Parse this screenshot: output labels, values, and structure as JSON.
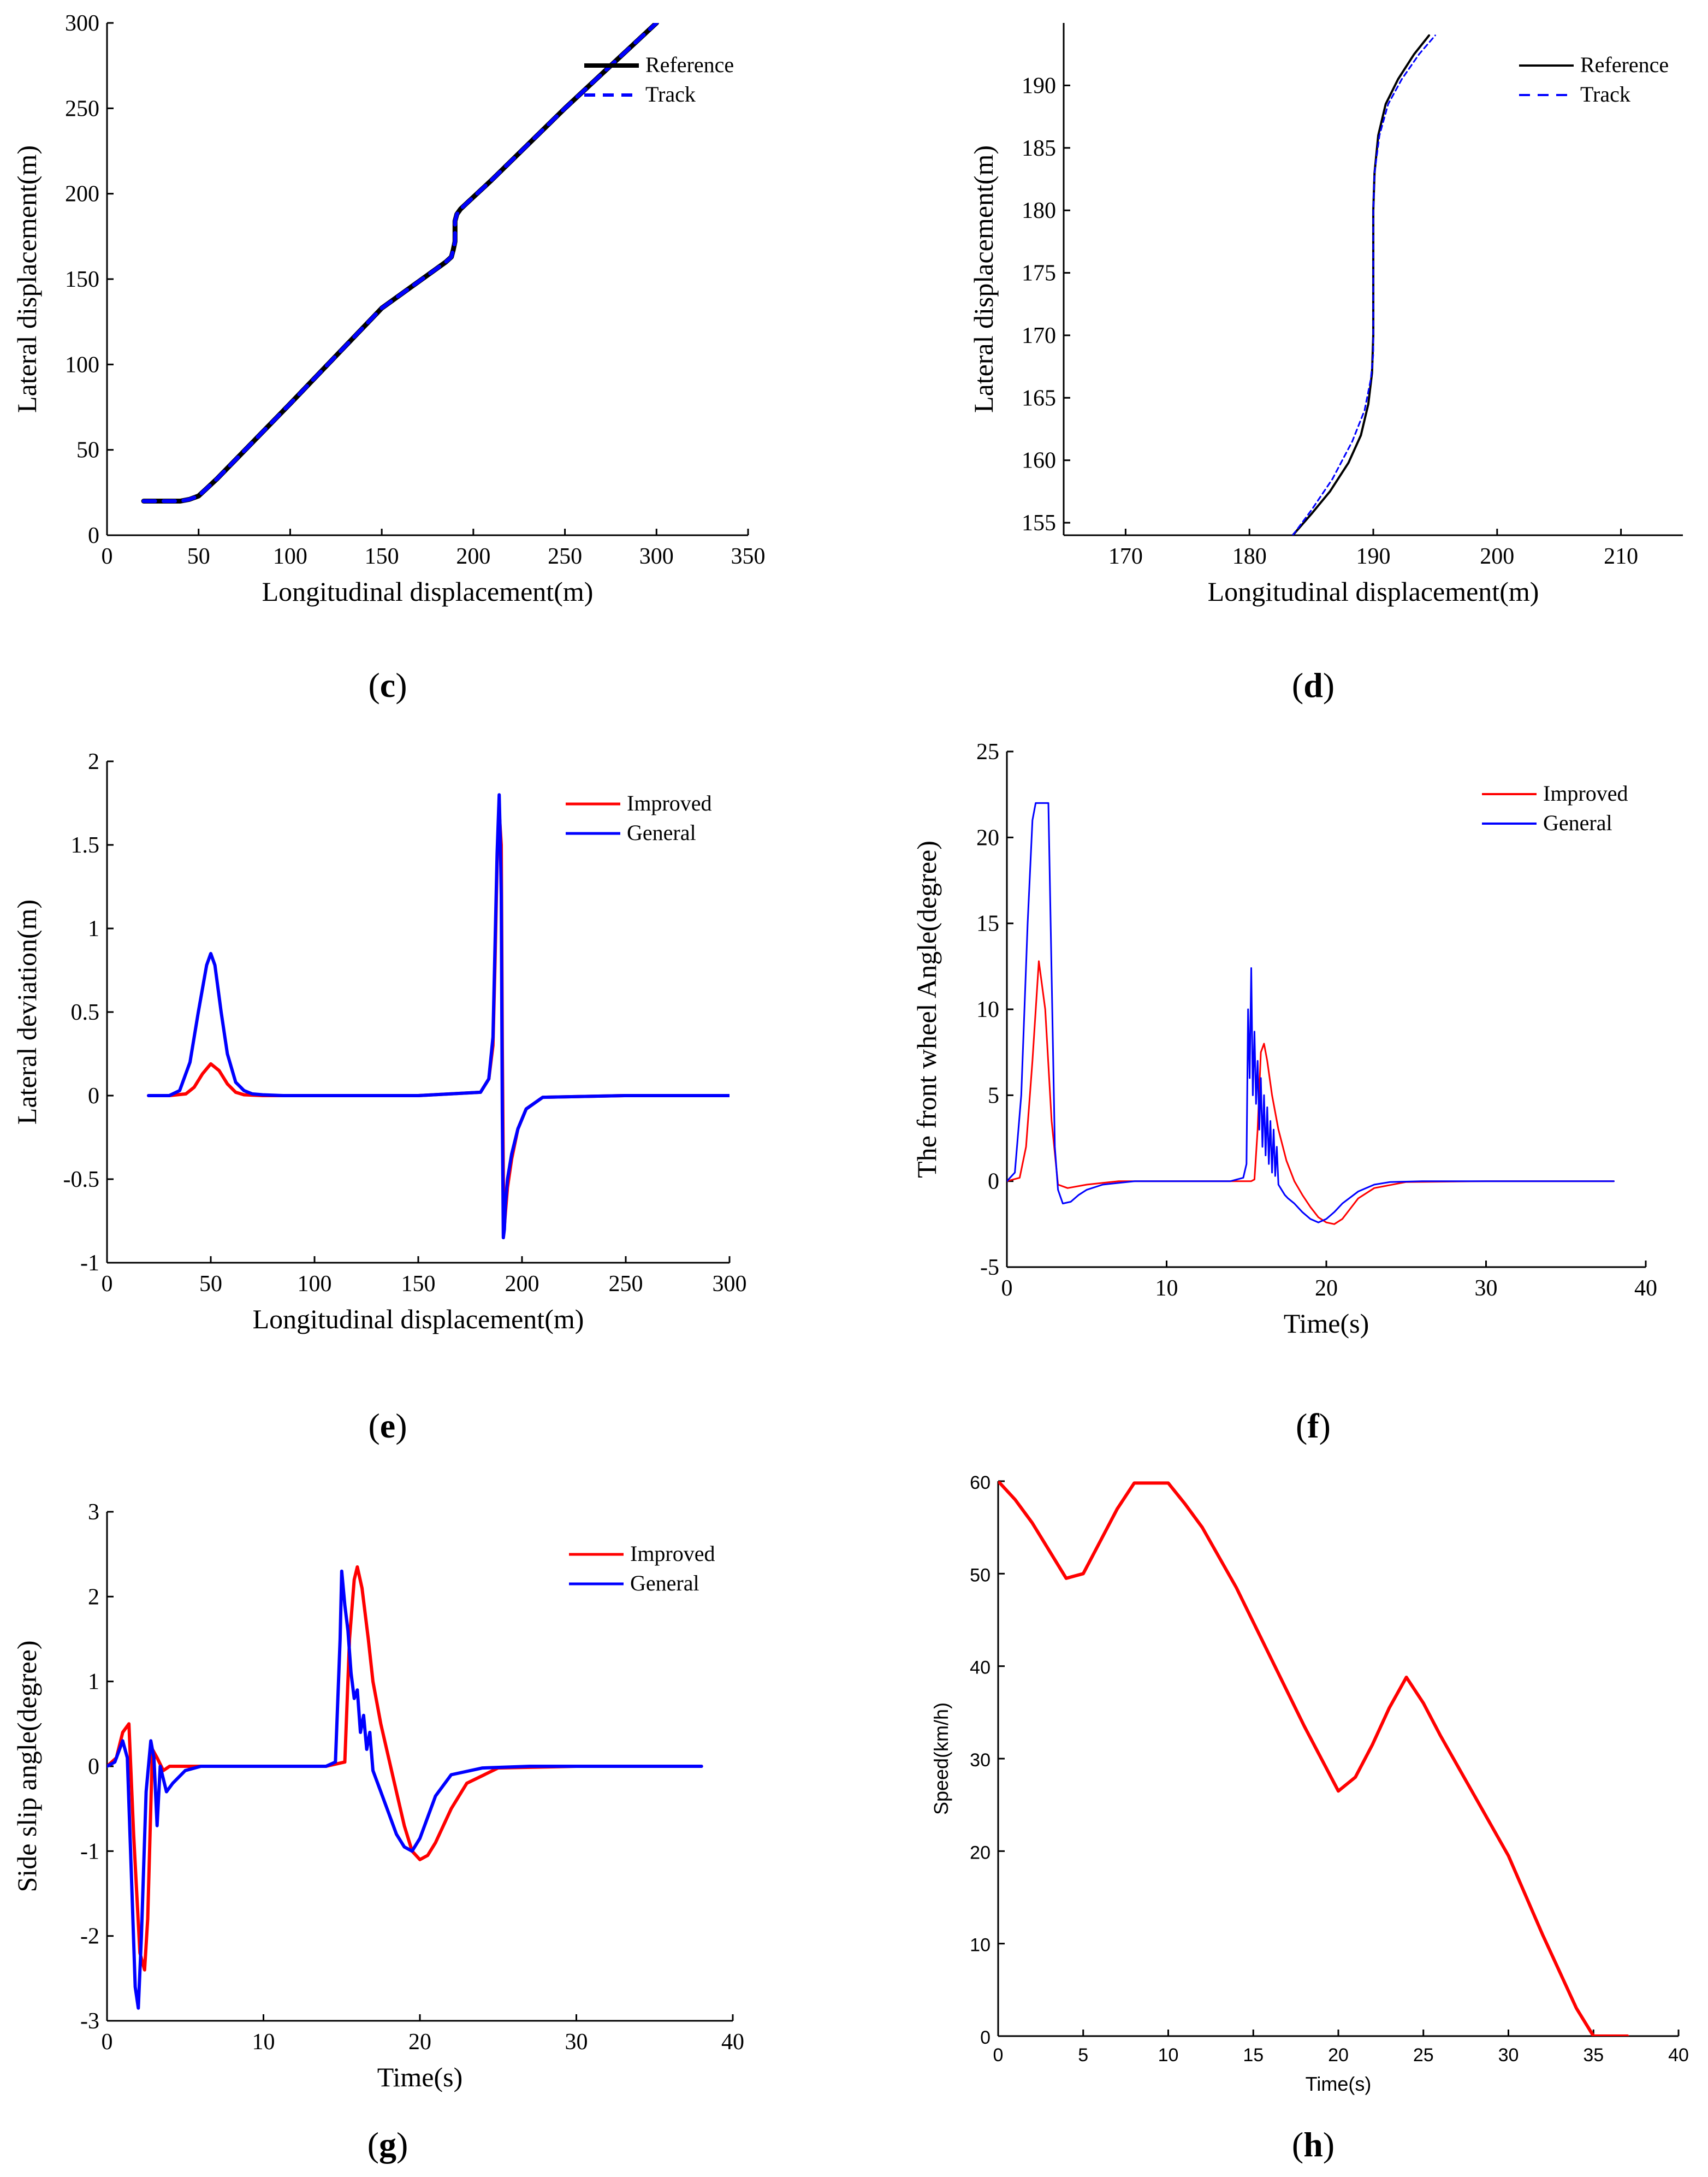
{
  "colors": {
    "black": "#000000",
    "blue": "#0000ff",
    "red": "#ff0000"
  },
  "captions": {
    "c": {
      "open": "(",
      "letter": "c",
      "close": ")"
    },
    "d": {
      "open": "(",
      "letter": "d",
      "close": ")"
    },
    "e": {
      "open": "(",
      "letter": "e",
      "close": ")"
    },
    "f": {
      "open": "(",
      "letter": "f",
      "close": ")"
    },
    "g": {
      "open": "(",
      "letter": "g",
      "close": ")"
    },
    "h": {
      "open": "(",
      "letter": "h",
      "close": ")"
    }
  },
  "chart_data": [
    {
      "id": "c",
      "type": "line",
      "title": "",
      "xlabel": "Longitudinal displacement(m)",
      "ylabel": "Lateral displacement(m)",
      "xlim": [
        0,
        350
      ],
      "ylim": [
        0,
        300
      ],
      "xticks": [
        0,
        50,
        100,
        150,
        200,
        250,
        300,
        350
      ],
      "yticks": [
        0,
        50,
        100,
        150,
        200,
        250,
        300
      ],
      "legend": {
        "position": "top-right"
      },
      "series": [
        {
          "name": "Reference",
          "color": "#000000",
          "dash": "solid",
          "width": 9,
          "x": [
            20,
            30,
            40,
            45,
            50,
            55,
            60,
            100,
            150,
            185,
            188,
            189,
            190,
            190,
            190,
            191,
            193,
            196,
            210,
            250,
            300
          ],
          "y": [
            20,
            20,
            20,
            21,
            23,
            28,
            33,
            77,
            133,
            160,
            163,
            167,
            172,
            178,
            184,
            188,
            191,
            194,
            208,
            250,
            300
          ]
        },
        {
          "name": "Track",
          "color": "#0000ff",
          "dash": "dash",
          "width": 7,
          "x": [
            20,
            30,
            40,
            45,
            50,
            55,
            60,
            100,
            150,
            185,
            188,
            189,
            190,
            190,
            190,
            191,
            193,
            196,
            210,
            250,
            300
          ],
          "y": [
            20,
            20,
            20,
            21,
            23,
            28,
            33,
            77,
            133,
            160,
            163,
            167,
            172,
            178,
            184,
            188,
            191,
            194,
            208,
            250,
            300
          ]
        }
      ]
    },
    {
      "id": "d",
      "type": "line",
      "title": "",
      "xlabel": "Longitudinal displacement(m)",
      "ylabel": "Lateral displacement(m)",
      "xlim": [
        165,
        215
      ],
      "ylim": [
        154,
        195
      ],
      "xticks": [
        170,
        180,
        190,
        200,
        210
      ],
      "yticks": [
        155,
        160,
        165,
        170,
        175,
        180,
        185,
        190
      ],
      "legend": {
        "position": "top-right"
      },
      "series": [
        {
          "name": "Reference",
          "color": "#000000",
          "dash": "solid",
          "width": 4,
          "x": [
            183.5,
            185,
            186.5,
            188,
            189,
            189.6,
            189.9,
            190,
            190,
            190,
            190.1,
            190.4,
            191,
            192,
            193.3,
            194.5
          ],
          "y": [
            154,
            155.7,
            157.5,
            159.8,
            162,
            164.5,
            167,
            170,
            175,
            180,
            183,
            186,
            188.5,
            190.5,
            192.5,
            194
          ]
        },
        {
          "name": "Track",
          "color": "#0000ff",
          "dash": "dash",
          "width": 3,
          "x": [
            183.5,
            185,
            186.7,
            188.3,
            189.3,
            189.8,
            190,
            190,
            190,
            190,
            190.1,
            190.5,
            191.2,
            192.3,
            193.7,
            195
          ],
          "y": [
            154,
            156,
            158.5,
            161.5,
            164,
            166.5,
            168.5,
            171,
            175,
            180,
            183,
            186,
            188.5,
            190.5,
            192.5,
            194
          ]
        }
      ]
    },
    {
      "id": "e",
      "type": "line",
      "title": "",
      "xlabel": "Longitudinal displacement(m)",
      "ylabel": "Lateral deviation(m)",
      "xlim": [
        0,
        300
      ],
      "ylim": [
        -1,
        2
      ],
      "xticks": [
        0,
        50,
        100,
        150,
        200,
        250,
        300
      ],
      "yticks": [
        -1,
        -0.5,
        0,
        0.5,
        1,
        1.5,
        2
      ],
      "legend": {
        "position": "top-right"
      },
      "series": [
        {
          "name": "Improved",
          "color": "#ff0000",
          "dash": "solid",
          "width": 6,
          "x": [
            20,
            30,
            38,
            42,
            46,
            50,
            54,
            58,
            62,
            66,
            75,
            100,
            150,
            180,
            184,
            186,
            187,
            188,
            189,
            190,
            190.5,
            191,
            191.5,
            192,
            193,
            195,
            198,
            202,
            210,
            250,
            300
          ],
          "y": [
            0,
            0,
            0.01,
            0.05,
            0.13,
            0.19,
            0.15,
            0.07,
            0.02,
            0.005,
            0,
            0,
            0,
            0.02,
            0.1,
            0.3,
            0.8,
            1.4,
            1.7,
            1.5,
            0.3,
            -0.5,
            -0.78,
            -0.7,
            -0.55,
            -0.38,
            -0.2,
            -0.08,
            -0.01,
            0,
            0
          ]
        },
        {
          "name": "General",
          "color": "#0000ff",
          "dash": "solid",
          "width": 6,
          "x": [
            20,
            30,
            35,
            40,
            44,
            48,
            50,
            52,
            55,
            58,
            62,
            66,
            70,
            75,
            85,
            100,
            150,
            180,
            184,
            186,
            187,
            188,
            189,
            189.5,
            190,
            190.5,
            191,
            191.5,
            192,
            193,
            195,
            198,
            202,
            210,
            250,
            300
          ],
          "y": [
            0,
            0,
            0.03,
            0.2,
            0.5,
            0.78,
            0.85,
            0.78,
            0.5,
            0.25,
            0.08,
            0.03,
            0.01,
            0.005,
            0,
            0,
            0,
            0.02,
            0.1,
            0.35,
            0.9,
            1.45,
            1.8,
            1.55,
            1.2,
            -0.1,
            -0.85,
            -0.8,
            -0.65,
            -0.5,
            -0.35,
            -0.2,
            -0.08,
            -0.01,
            0,
            0
          ]
        }
      ]
    },
    {
      "id": "f",
      "type": "line",
      "title": "",
      "xlabel": "Time(s)",
      "ylabel": "The front wheel Angle(degree)",
      "xlim": [
        0,
        40
      ],
      "ylim": [
        -5,
        25
      ],
      "xticks": [
        0,
        10,
        20,
        30,
        40
      ],
      "yticks": [
        -5,
        0,
        5,
        10,
        15,
        20,
        25
      ],
      "legend": {
        "position": "top-right"
      },
      "series": [
        {
          "name": "Improved",
          "color": "#ff0000",
          "dash": "solid",
          "width": 3,
          "x": [
            0,
            0.8,
            1.2,
            1.6,
            2,
            2.4,
            2.8,
            3.2,
            3.8,
            5,
            7,
            10,
            14,
            15.3,
            15.5,
            15.7,
            15.9,
            16.1,
            16.3,
            16.6,
            17,
            17.5,
            18,
            18.5,
            19,
            19.5,
            20,
            20.5,
            21,
            21.5,
            22,
            23,
            25,
            30,
            38
          ],
          "y": [
            0,
            0.2,
            2,
            7,
            12.8,
            10,
            3.5,
            -0.2,
            -0.4,
            -0.2,
            0,
            0,
            0,
            0,
            0.1,
            3,
            7.5,
            8,
            7,
            5,
            3,
            1.2,
            0,
            -0.8,
            -1.5,
            -2.1,
            -2.4,
            -2.5,
            -2.2,
            -1.6,
            -1,
            -0.4,
            -0.05,
            0,
            0
          ]
        },
        {
          "name": "General",
          "color": "#0000ff",
          "dash": "solid",
          "width": 3,
          "x": [
            0,
            0.5,
            0.9,
            1.3,
            1.6,
            1.8,
            2,
            2.6,
            2.8,
            3,
            3.2,
            3.5,
            4,
            4.5,
            5,
            6,
            8,
            10,
            14,
            14.8,
            15,
            15.1,
            15.2,
            15.3,
            15.4,
            15.5,
            15.6,
            15.7,
            15.8,
            15.9,
            16,
            16.1,
            16.2,
            16.3,
            16.4,
            16.5,
            16.6,
            16.7,
            16.8,
            16.9,
            17,
            17.2,
            17.4,
            17.6,
            18,
            18.5,
            19,
            19.5,
            20,
            20.5,
            21,
            22,
            23,
            24,
            26,
            30,
            38
          ],
          "y": [
            0,
            0.5,
            5,
            15,
            21,
            22,
            22,
            22,
            12,
            2,
            -0.5,
            -1.3,
            -1.2,
            -0.8,
            -0.5,
            -0.2,
            0,
            0,
            0,
            0.2,
            1,
            10,
            6,
            12.4,
            5,
            8.7,
            4.5,
            7,
            3,
            6,
            2,
            5,
            1.5,
            4.3,
            1,
            3.5,
            0.5,
            3,
            0.3,
            2,
            -0.2,
            -0.5,
            -0.8,
            -1,
            -1.3,
            -1.8,
            -2.2,
            -2.4,
            -2.2,
            -1.8,
            -1.3,
            -0.6,
            -0.2,
            -0.05,
            0,
            0,
            0
          ]
        }
      ]
    },
    {
      "id": "g",
      "type": "line",
      "title": "",
      "xlabel": "Time(s)",
      "ylabel": "Side slip angle(degree)",
      "xlim": [
        0,
        40
      ],
      "ylim": [
        -3,
        3
      ],
      "xticks": [
        0,
        10,
        20,
        30,
        40
      ],
      "yticks": [
        -3,
        -2,
        -1,
        0,
        1,
        2,
        3
      ],
      "legend": {
        "position": "top-right"
      },
      "series": [
        {
          "name": "Improved",
          "color": "#ff0000",
          "dash": "solid",
          "width": 6,
          "x": [
            0,
            0.6,
            1,
            1.4,
            1.7,
            2.1,
            2.4,
            2.6,
            2.9,
            3.2,
            3.6,
            4,
            5,
            7,
            10,
            14,
            15.2,
            15.5,
            15.8,
            16,
            16.3,
            16.7,
            17,
            17.5,
            18,
            18.5,
            19,
            19.5,
            20,
            20.5,
            21,
            22,
            23,
            25,
            30,
            38
          ],
          "y": [
            0,
            0.1,
            0.4,
            0.5,
            -0.8,
            -2.2,
            -2.4,
            -1.8,
            0.2,
            0.1,
            -0.05,
            0,
            0,
            0,
            0,
            0,
            0.05,
            1.5,
            2.2,
            2.35,
            2.1,
            1.5,
            1,
            0.5,
            0.1,
            -0.3,
            -0.7,
            -1,
            -1.1,
            -1.05,
            -0.9,
            -0.5,
            -0.2,
            -0.02,
            0,
            0
          ]
        },
        {
          "name": "General",
          "color": "#0000ff",
          "dash": "solid",
          "width": 6,
          "x": [
            0,
            0.5,
            1,
            1.3,
            1.6,
            1.8,
            2,
            2.2,
            2.5,
            2.8,
            3,
            3.2,
            3.4,
            3.8,
            4.2,
            5,
            6,
            8,
            10,
            14,
            14.6,
            14.9,
            15,
            15.2,
            15.4,
            15.6,
            15.8,
            16,
            16.2,
            16.4,
            16.6,
            16.8,
            17,
            17.5,
            18,
            18.5,
            19,
            19.5,
            20,
            20.5,
            21,
            22,
            24,
            27,
            30,
            38
          ],
          "y": [
            0,
            0.05,
            0.3,
            0.1,
            -1.5,
            -2.6,
            -2.85,
            -2,
            -0.3,
            0.3,
            0.1,
            -0.7,
            0,
            -0.3,
            -0.2,
            -0.05,
            0,
            0,
            0,
            0,
            0.05,
            1.5,
            2.3,
            1.9,
            1.6,
            1.1,
            0.8,
            0.9,
            0.4,
            0.6,
            0.2,
            0.4,
            -0.05,
            -0.3,
            -0.55,
            -0.8,
            -0.95,
            -1,
            -0.85,
            -0.6,
            -0.35,
            -0.1,
            -0.02,
            0,
            0,
            0
          ]
        }
      ]
    },
    {
      "id": "h",
      "type": "line",
      "title": "",
      "xlabel": "Time(s)",
      "ylabel": "Speed(km/h)",
      "xlim": [
        0,
        40
      ],
      "ylim": [
        0,
        60
      ],
      "xticks": [
        0,
        5,
        10,
        15,
        20,
        25,
        30,
        35,
        40
      ],
      "yticks": [
        0,
        10,
        20,
        30,
        40,
        50,
        60
      ],
      "legend": null,
      "series": [
        {
          "color": "#ff0000",
          "dash": "solid",
          "width": 6,
          "x": [
            0,
            1,
            2,
            3,
            4,
            5,
            6,
            7,
            8,
            9,
            10,
            11,
            12,
            14,
            16,
            18,
            20,
            21,
            22,
            23,
            24,
            25,
            26,
            28,
            30,
            32,
            34,
            35,
            36,
            37
          ],
          "y": [
            60,
            58,
            55.5,
            52.5,
            49.5,
            50,
            53.5,
            57,
            59.8,
            59.8,
            59.8,
            57.5,
            55,
            48.5,
            41,
            33.5,
            26.5,
            28,
            31.5,
            35.5,
            38.8,
            36,
            32.5,
            26,
            19.5,
            11,
            3,
            0,
            0,
            0
          ]
        }
      ]
    }
  ]
}
